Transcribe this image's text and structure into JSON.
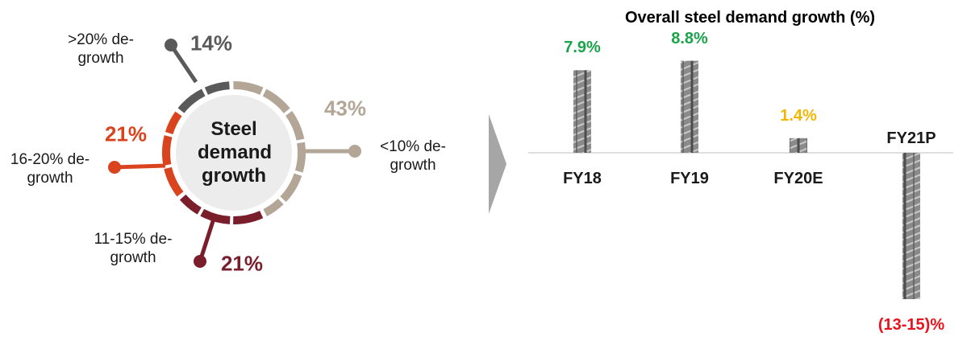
{
  "chart_data": [
    {
      "type": "pie",
      "center_label": "Steel demand growth",
      "categories": [
        ">20% de-growth",
        "<10% de-growth",
        "11-15% de-growth",
        "16-20% de-growth"
      ],
      "values": [
        14,
        43,
        21,
        21
      ],
      "value_labels": [
        "14%",
        "43%",
        "21%",
        "21%"
      ],
      "colors": [
        "#5a5a5a",
        "#b3a697",
        "#7a1e2c",
        "#d9441e"
      ]
    },
    {
      "type": "bar",
      "title": "Overall steel demand growth (%)",
      "categories": [
        "FY18",
        "FY19",
        "FY20E",
        "FY21P"
      ],
      "values": [
        7.9,
        8.8,
        1.4,
        -14
      ],
      "value_labels": [
        "7.9%",
        "8.8%",
        "1.4%",
        "(13-15)%"
      ],
      "value_label_colors": [
        "#1ba34b",
        "#1ba34b",
        "#f2b705",
        "#e8141d"
      ],
      "color": "#8c8c8c"
    }
  ]
}
